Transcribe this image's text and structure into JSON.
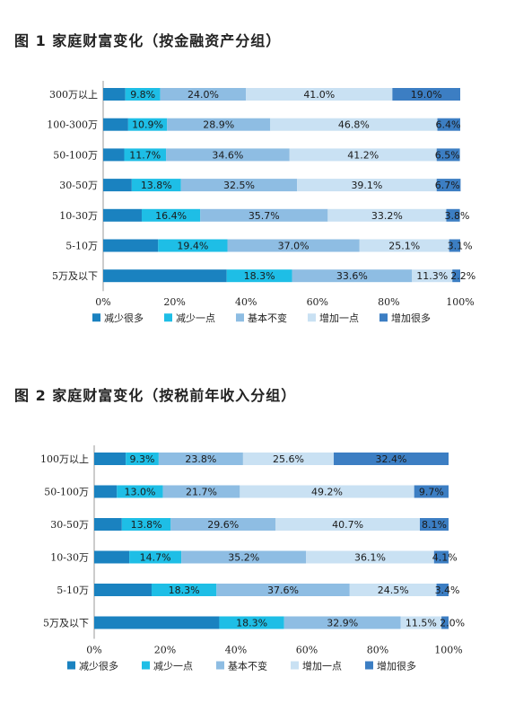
{
  "chart_data": [
    {
      "type": "bar",
      "orientation": "horizontal",
      "stacked": true,
      "title": "图 1  家庭财富变化（按金融资产分组）",
      "categories": [
        "300万以上",
        "100-300万",
        "50-100万",
        "30-50万",
        "10-30万",
        "5-10万",
        "5万及以下"
      ],
      "series": [
        {
          "name": "减少很多",
          "color": "#1a82c0",
          "values": [
            6.2,
            7.0,
            5.9,
            8.0,
            10.8,
            15.4,
            34.6
          ]
        },
        {
          "name": "减少一点",
          "color": "#1ebee6",
          "values": [
            9.8,
            10.9,
            11.7,
            13.8,
            16.4,
            19.4,
            18.3
          ]
        },
        {
          "name": "基本不变",
          "color": "#8ebde3",
          "values": [
            24.0,
            28.9,
            34.6,
            32.5,
            35.7,
            37.0,
            33.6
          ]
        },
        {
          "name": "增加一点",
          "color": "#c9e1f3",
          "values": [
            41.0,
            46.8,
            41.2,
            39.1,
            33.2,
            25.1,
            11.3
          ]
        },
        {
          "name": "增加很多",
          "color": "#3c7ec3",
          "values": [
            19.0,
            6.4,
            6.5,
            6.7,
            3.8,
            3.1,
            2.2
          ]
        }
      ],
      "labeled_series": [
        "减少一点",
        "基本不变",
        "增加一点",
        "增加很多"
      ],
      "labels": [
        [
          "9.8%",
          "24.0%",
          "41.0%",
          "19.0%"
        ],
        [
          "10.9%",
          "28.9%",
          "46.8%",
          "6.4%"
        ],
        [
          "11.7%",
          "34.6%",
          "41.2%",
          "6.5%"
        ],
        [
          "13.8%",
          "32.5%",
          "39.1%",
          "6.7%"
        ],
        [
          "16.4%",
          "35.7%",
          "33.2%",
          "3.8%"
        ],
        [
          "19.4%",
          "37.0%",
          "25.1%",
          "3.1%"
        ],
        [
          "18.3%",
          "33.6%",
          "11.3%",
          "2.2%"
        ]
      ],
      "xticks": [
        "0%",
        "20%",
        "40%",
        "60%",
        "80%",
        "100%"
      ],
      "xlim": [
        0,
        100
      ],
      "legend": "bottom"
    },
    {
      "type": "bar",
      "orientation": "horizontal",
      "stacked": true,
      "title": "图 2  家庭财富变化（按税前年收入分组）",
      "categories": [
        "100万以上",
        "50-100万",
        "30-50万",
        "10-30万",
        "5-10万",
        "5万及以下"
      ],
      "series": [
        {
          "name": "减少很多",
          "color": "#1a82c0",
          "values": [
            8.9,
            6.4,
            7.8,
            9.9,
            16.2,
            35.3
          ]
        },
        {
          "name": "减少一点",
          "color": "#1ebee6",
          "values": [
            9.3,
            13.0,
            13.8,
            14.7,
            18.3,
            18.3
          ]
        },
        {
          "name": "基本不变",
          "color": "#8ebde3",
          "values": [
            23.8,
            21.7,
            29.6,
            35.2,
            37.6,
            32.9
          ]
        },
        {
          "name": "增加一点",
          "color": "#c9e1f3",
          "values": [
            25.6,
            49.2,
            40.7,
            36.1,
            24.5,
            11.5
          ]
        },
        {
          "name": "增加很多",
          "color": "#3c7ec3",
          "values": [
            32.4,
            9.7,
            8.1,
            4.1,
            3.4,
            2.0
          ]
        }
      ],
      "labeled_series": [
        "减少一点",
        "基本不变",
        "增加一点",
        "增加很多"
      ],
      "labels": [
        [
          "9.3%",
          "23.8%",
          "25.6%",
          "32.4%"
        ],
        [
          "13.0%",
          "21.7%",
          "49.2%",
          "9.7%"
        ],
        [
          "13.8%",
          "29.6%",
          "40.7%",
          "8.1%"
        ],
        [
          "14.7%",
          "35.2%",
          "36.1%",
          "4.1%"
        ],
        [
          "18.3%",
          "37.6%",
          "24.5%",
          "3.4%"
        ],
        [
          "18.3%",
          "32.9%",
          "11.5%",
          "2.0%"
        ]
      ],
      "xticks": [
        "0%",
        "20%",
        "40%",
        "60%",
        "80%",
        "100%"
      ],
      "xlim": [
        0,
        100
      ],
      "legend": "bottom"
    }
  ]
}
